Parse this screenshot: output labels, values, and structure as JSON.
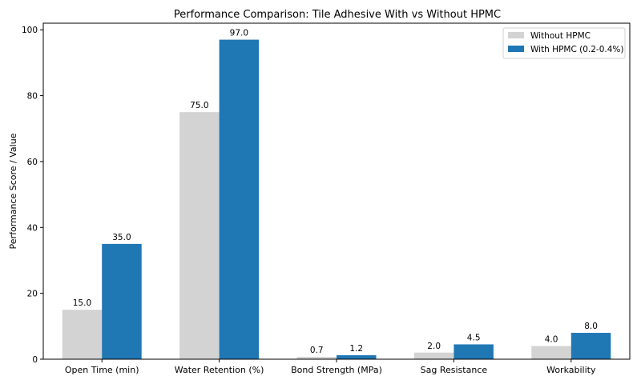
{
  "chart_data": {
    "type": "bar",
    "title": "Performance Comparison: Tile Adhesive With vs Without HPMC",
    "xlabel": "",
    "ylabel": "Performance Score / Value",
    "ylim": [
      0,
      102
    ],
    "yticks": [
      0,
      20,
      40,
      60,
      80,
      100
    ],
    "categories": [
      "Open Time (min)",
      "Water Retention (%)",
      "Bond Strength (MPa)",
      "Sag Resistance",
      "Workability"
    ],
    "series": [
      {
        "name": "Without HPMC",
        "color": "#d3d3d3",
        "values": [
          15.0,
          75.0,
          0.7,
          2.0,
          4.0
        ]
      },
      {
        "name": "With HPMC (0.2-0.4%)",
        "color": "#1f77b4",
        "values": [
          35.0,
          97.0,
          1.2,
          4.5,
          8.0
        ]
      }
    ],
    "legend_position": "top-right",
    "grid": false
  }
}
